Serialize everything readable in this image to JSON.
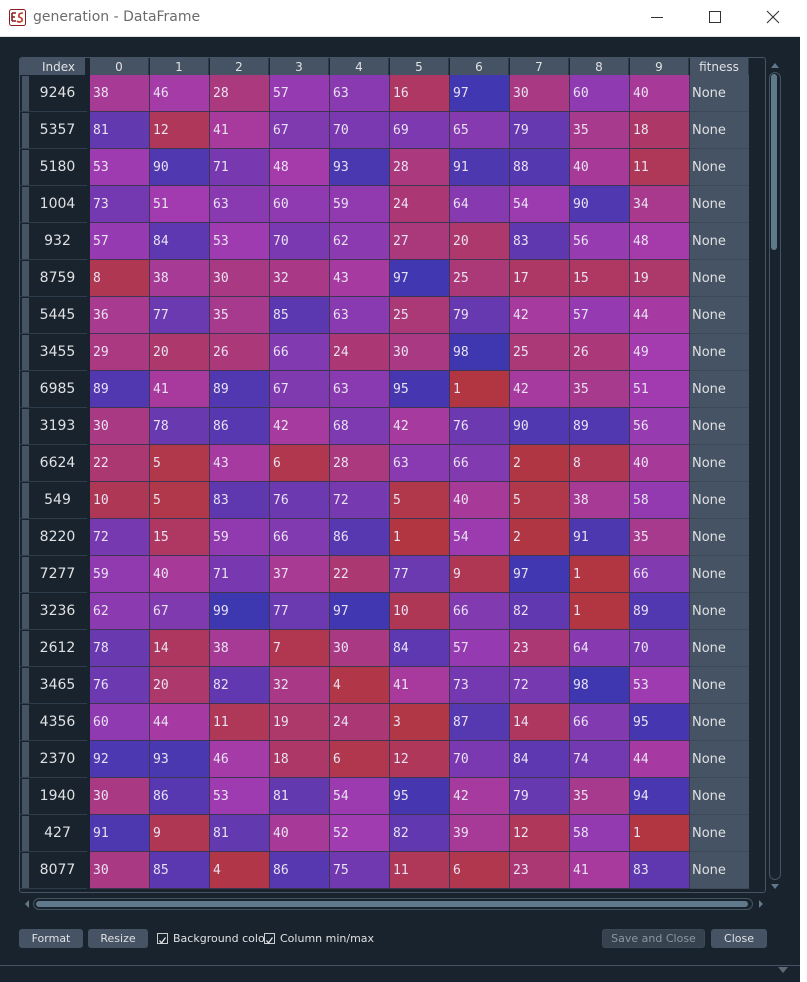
{
  "window": {
    "title": "generation - DataFrame"
  },
  "table": {
    "index_header": "Index",
    "columns": [
      "0",
      "1",
      "2",
      "3",
      "4",
      "5",
      "6",
      "7",
      "8",
      "9"
    ],
    "fitness_header": "fitness",
    "rows": [
      {
        "index": "9246",
        "values": [
          38,
          46,
          28,
          57,
          63,
          16,
          97,
          30,
          60,
          40
        ],
        "fitness": "None"
      },
      {
        "index": "5357",
        "values": [
          81,
          12,
          41,
          67,
          70,
          69,
          65,
          79,
          35,
          18
        ],
        "fitness": "None"
      },
      {
        "index": "5180",
        "values": [
          53,
          90,
          71,
          48,
          93,
          28,
          91,
          88,
          40,
          11
        ],
        "fitness": "None"
      },
      {
        "index": "1004",
        "values": [
          73,
          51,
          63,
          60,
          59,
          24,
          64,
          54,
          90,
          34
        ],
        "fitness": "None"
      },
      {
        "index": "932",
        "values": [
          57,
          84,
          53,
          70,
          62,
          27,
          20,
          83,
          56,
          48
        ],
        "fitness": "None"
      },
      {
        "index": "8759",
        "values": [
          8,
          38,
          30,
          32,
          43,
          97,
          25,
          17,
          15,
          19
        ],
        "fitness": "None"
      },
      {
        "index": "5445",
        "values": [
          36,
          77,
          35,
          85,
          63,
          25,
          79,
          42,
          57,
          44
        ],
        "fitness": "None"
      },
      {
        "index": "3455",
        "values": [
          29,
          20,
          26,
          66,
          24,
          30,
          98,
          25,
          26,
          49
        ],
        "fitness": "None"
      },
      {
        "index": "6985",
        "values": [
          89,
          41,
          89,
          67,
          63,
          95,
          1,
          42,
          35,
          51
        ],
        "fitness": "None"
      },
      {
        "index": "3193",
        "values": [
          30,
          78,
          86,
          42,
          68,
          42,
          76,
          90,
          89,
          56
        ],
        "fitness": "None"
      },
      {
        "index": "6624",
        "values": [
          22,
          5,
          43,
          6,
          28,
          63,
          66,
          2,
          8,
          40
        ],
        "fitness": "None"
      },
      {
        "index": "549",
        "values": [
          10,
          5,
          83,
          76,
          72,
          5,
          40,
          5,
          38,
          58
        ],
        "fitness": "None"
      },
      {
        "index": "8220",
        "values": [
          72,
          15,
          59,
          66,
          86,
          1,
          54,
          2,
          91,
          35
        ],
        "fitness": "None"
      },
      {
        "index": "7277",
        "values": [
          59,
          40,
          71,
          37,
          22,
          77,
          9,
          97,
          1,
          66
        ],
        "fitness": "None"
      },
      {
        "index": "3236",
        "values": [
          62,
          67,
          99,
          77,
          97,
          10,
          66,
          82,
          1,
          89
        ],
        "fitness": "None"
      },
      {
        "index": "2612",
        "values": [
          78,
          14,
          38,
          7,
          30,
          84,
          57,
          23,
          64,
          70
        ],
        "fitness": "None"
      },
      {
        "index": "3465",
        "values": [
          76,
          20,
          82,
          32,
          4,
          41,
          73,
          72,
          98,
          53
        ],
        "fitness": "None"
      },
      {
        "index": "4356",
        "values": [
          60,
          44,
          11,
          19,
          24,
          3,
          87,
          14,
          66,
          95
        ],
        "fitness": "None"
      },
      {
        "index": "2370",
        "values": [
          92,
          93,
          46,
          18,
          6,
          12,
          70,
          84,
          74,
          44
        ],
        "fitness": "None"
      },
      {
        "index": "1940",
        "values": [
          30,
          86,
          53,
          81,
          54,
          95,
          42,
          79,
          35,
          94
        ],
        "fitness": "None"
      },
      {
        "index": "427",
        "values": [
          91,
          9,
          81,
          40,
          52,
          82,
          39,
          12,
          58,
          1
        ],
        "fitness": "None"
      },
      {
        "index": "8077",
        "values": [
          30,
          85,
          4,
          86,
          75,
          11,
          6,
          23,
          41,
          83
        ],
        "fitness": "None"
      }
    ]
  },
  "colors": {
    "low": "#b2363f",
    "mid": "#a43bb0",
    "high": "#3b37b0",
    "background": "#19232d",
    "header": "#455364"
  },
  "buttons": {
    "format": "Format",
    "resize": "Resize",
    "save_close": "Save and Close",
    "close": "Close"
  },
  "checkboxes": {
    "background_color": {
      "label": "Background color",
      "checked": true
    },
    "column_minmax": {
      "label": "Column min/max",
      "checked": true
    }
  }
}
